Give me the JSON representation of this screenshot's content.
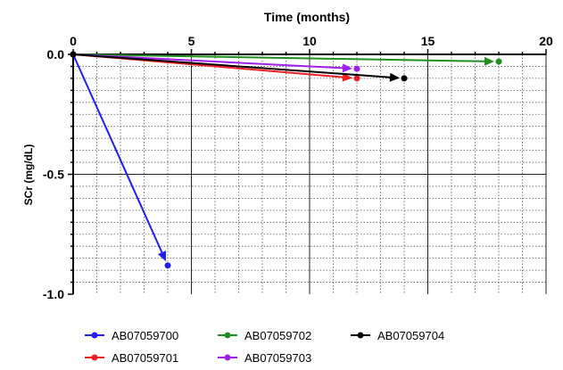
{
  "chart_data": {
    "type": "line",
    "title": "",
    "xlabel": "Time (months)",
    "ylabel": "SCr (mg/dL)",
    "xlim": [
      0,
      20
    ],
    "ylim": [
      -1.0,
      0.0
    ],
    "x_ticks": [
      "0",
      "5",
      "10",
      "15",
      "20"
    ],
    "y_ticks": [
      "0.0",
      "-0.5",
      "-1.0"
    ],
    "x_axis_position": "top",
    "grid": true,
    "legend_position": "bottom",
    "series": [
      {
        "name": "AB07059700",
        "color": "#1f1fef",
        "x": [
          0,
          4
        ],
        "y": [
          0,
          -0.88
        ]
      },
      {
        "name": "AB07059701",
        "color": "#ef1f1f",
        "x": [
          0,
          12
        ],
        "y": [
          0,
          -0.1
        ]
      },
      {
        "name": "AB07059702",
        "color": "#1f8f1f",
        "x": [
          0,
          18
        ],
        "y": [
          0,
          -0.03
        ]
      },
      {
        "name": "AB07059703",
        "color": "#a020f0",
        "x": [
          0,
          12
        ],
        "y": [
          0,
          -0.06
        ]
      },
      {
        "name": "AB07059704",
        "color": "#000000",
        "x": [
          0,
          14
        ],
        "y": [
          0,
          -0.1
        ]
      }
    ]
  }
}
